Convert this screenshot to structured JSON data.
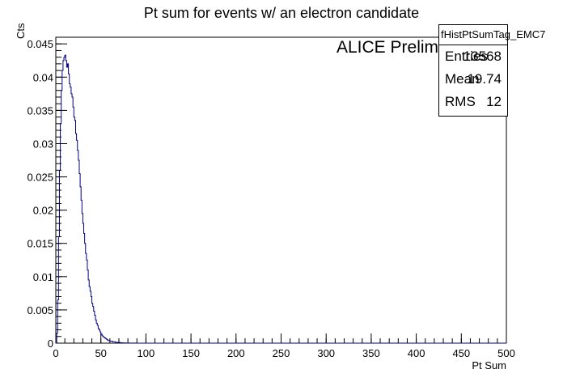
{
  "chart_data": {
    "type": "bar",
    "title": "Pt sum for events w/ an electron candidate",
    "xlabel": "Pt Sum",
    "ylabel": "Cts",
    "xlim": [
      0,
      500
    ],
    "ylim": [
      0,
      0.046
    ],
    "x_ticks": [
      "0",
      "50",
      "100",
      "150",
      "200",
      "250",
      "300",
      "350",
      "400",
      "450",
      "500"
    ],
    "y_ticks": [
      "0",
      "0.005",
      "0.01",
      "0.015",
      "0.02",
      "0.025",
      "0.03",
      "0.035",
      "0.04",
      "0.045"
    ],
    "bin_width": 1,
    "x_start": 0,
    "series_color": "#000080",
    "values": [
      0,
      0.0015,
      0.0065,
      0.016,
      0.026,
      0.033,
      0.038,
      0.041,
      0.0425,
      0.043,
      0.0433,
      0.0425,
      0.0415,
      0.042,
      0.0405,
      0.039,
      0.0385,
      0.0375,
      0.037,
      0.0355,
      0.034,
      0.0335,
      0.0315,
      0.0305,
      0.029,
      0.0275,
      0.0255,
      0.0235,
      0.0215,
      0.0195,
      0.018,
      0.0165,
      0.015,
      0.0135,
      0.0125,
      0.011,
      0.0095,
      0.0085,
      0.0078,
      0.007,
      0.006,
      0.0055,
      0.0048,
      0.0042,
      0.0035,
      0.003,
      0.0027,
      0.0022,
      0.002,
      0.0017,
      0.0014,
      0.0012,
      0.001,
      0.0009,
      0.0008,
      0.0007,
      0.0006,
      0.0005,
      0.0004,
      0.0004,
      0.0003,
      0.0003,
      0.0003,
      0.0002,
      0.0002,
      0.0002,
      0.00015,
      0.0001,
      0.0001,
      0.0001,
      0.0001,
      8e-05,
      6e-05,
      5e-05,
      4e-05,
      4e-05,
      3e-05,
      3e-05,
      2e-05,
      2e-05,
      2e-05,
      1e-05,
      1e-05,
      1e-05,
      1e-05,
      1e-05,
      1e-05,
      1e-05,
      1e-05,
      1e-05
    ]
  },
  "annotation": "ALICE Preliminary",
  "stats": {
    "name": "fHistPtSumTag_EMC7",
    "rows": [
      {
        "label": "Entries",
        "value": "13568"
      },
      {
        "label": "Mean",
        "value": "19.74"
      },
      {
        "label": "RMS",
        "value": "12"
      }
    ]
  }
}
